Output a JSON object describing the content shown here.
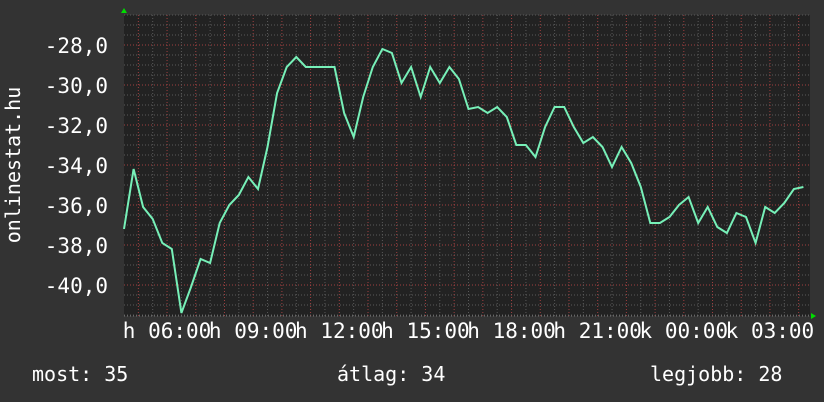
{
  "chart_data": {
    "type": "line",
    "title": "",
    "ylabel": "onlinestat.hu",
    "xlabel": "",
    "ylim": [
      -41.55,
      -26.5
    ],
    "xlim": [
      "04:30",
      "04:30"
    ],
    "grid": true,
    "y_ticks": [
      "-28,0",
      "-30,0",
      "-32,0",
      "-34,0",
      "-36,0",
      "-38,0",
      "-40,0"
    ],
    "y_tick_values": [
      -28,
      -30,
      -32,
      -34,
      -36,
      -38,
      -40
    ],
    "x_ticks": [
      "h 06:00",
      "h 09:00",
      "h 12:00",
      "h 15:00",
      "h 18:00",
      "h 21:00",
      "k 00:00",
      "k 03:00"
    ],
    "x_tick_times": [
      "06:00",
      "09:00",
      "12:00",
      "15:00",
      "18:00",
      "21:00",
      "00:00",
      "03:00"
    ],
    "series": [
      {
        "color": "#77f0b8",
        "x": [
          "04:30",
          "04:50",
          "05:10",
          "05:30",
          "05:50",
          "06:10",
          "06:30",
          "06:50",
          "07:10",
          "07:30",
          "07:50",
          "08:10",
          "08:30",
          "08:50",
          "09:10",
          "09:30",
          "09:50",
          "10:10",
          "10:30",
          "10:50",
          "11:10",
          "11:30",
          "11:50",
          "12:10",
          "12:30",
          "12:50",
          "13:10",
          "13:30",
          "13:50",
          "14:10",
          "14:30",
          "14:50",
          "15:10",
          "15:30",
          "15:50",
          "16:10",
          "16:30",
          "16:50",
          "17:10",
          "17:30",
          "17:50",
          "18:10",
          "18:30",
          "18:50",
          "19:10",
          "19:30",
          "19:50",
          "20:10",
          "20:30",
          "20:50",
          "21:10",
          "21:30",
          "21:50",
          "22:10",
          "22:30",
          "22:50",
          "23:10",
          "23:30",
          "23:50",
          "00:10",
          "00:30",
          "00:50",
          "01:10",
          "01:30",
          "01:50",
          "02:10",
          "02:30",
          "02:50",
          "03:10",
          "03:30",
          "03:50",
          "04:10"
        ],
        "values": [
          -37.2,
          -34.2,
          -36.1,
          -36.7,
          -37.9,
          -38.2,
          -41.4,
          -40.1,
          -38.7,
          -38.9,
          -36.9,
          -36.0,
          -35.5,
          -34.6,
          -35.2,
          -33.1,
          -30.4,
          -29.1,
          -28.6,
          -29.1,
          -29.1,
          -29.1,
          -29.1,
          -31.4,
          -32.6,
          -30.6,
          -29.1,
          -28.2,
          -28.4,
          -29.9,
          -29.1,
          -30.6,
          -29.1,
          -29.9,
          -29.1,
          -29.7,
          -31.2,
          -31.1,
          -31.4,
          -31.1,
          -31.6,
          -33.0,
          -33.0,
          -33.6,
          -32.1,
          -31.1,
          -31.1,
          -32.1,
          -32.9,
          -32.6,
          -33.1,
          -34.1,
          -33.1,
          -33.9,
          -35.1,
          -36.9,
          -36.9,
          -36.6,
          -36.0,
          -35.6,
          -36.9,
          -36.1,
          -37.1,
          -37.4,
          -36.4,
          -36.6,
          -37.9,
          -36.1,
          -36.4,
          -35.9,
          -35.2,
          -35.1
        ]
      }
    ],
    "colors": {
      "background": "#333333",
      "plot_background": "#222222",
      "major_grid": "#a04040",
      "minor_grid": "#5a5a5a",
      "arrow": "#00dd00"
    }
  },
  "legend": {
    "current": "most: 35",
    "average": "átlag: 34",
    "max": "legjobb: 28"
  }
}
